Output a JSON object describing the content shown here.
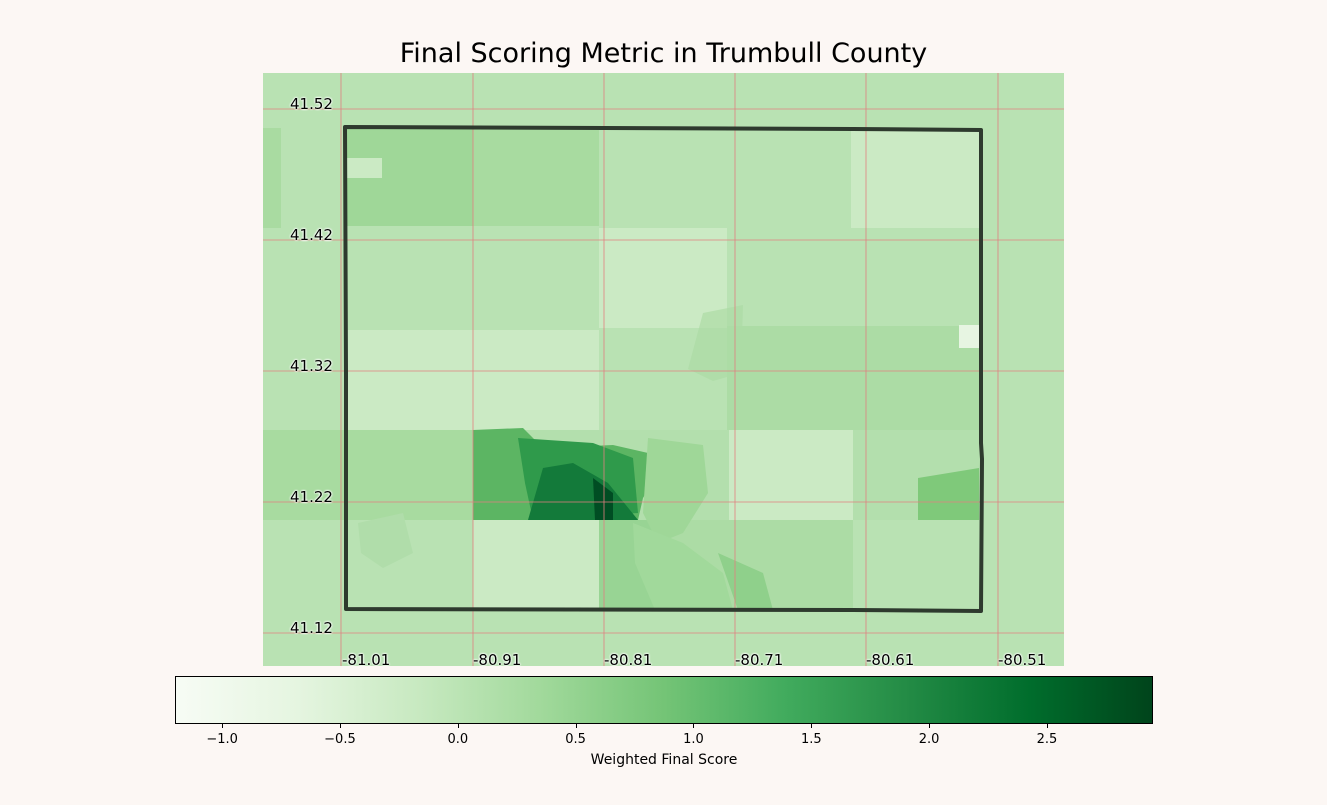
{
  "title": "Final Scoring Metric in Trumbull County",
  "map": {
    "region": "Trumbull County",
    "lat_ticks": [
      "41.52",
      "41.42",
      "41.32",
      "41.22",
      "41.12"
    ],
    "lon_ticks": [
      "-81.01",
      "-80.91",
      "-80.81",
      "-80.71",
      "-80.61",
      "-80.51"
    ],
    "gridline_color": "#e08080",
    "boundary_color": "#2e3a2e"
  },
  "colorbar": {
    "label": "Weighted Final Score",
    "colormap": "Greens",
    "min": -1.2,
    "max": 2.95,
    "ticks": [
      "−1.0",
      "−0.5",
      "0.0",
      "0.5",
      "1.0",
      "1.5",
      "2.0",
      "2.5"
    ],
    "tick_values": [
      -1.0,
      -0.5,
      0.0,
      0.5,
      1.0,
      1.5,
      2.0,
      2.5
    ],
    "colors": [
      "#f7fcf5",
      "#e5f5e0",
      "#c7e9c0",
      "#a1d99b",
      "#74c476",
      "#41ab5d",
      "#238b45",
      "#006d2c",
      "#00441b"
    ]
  }
}
